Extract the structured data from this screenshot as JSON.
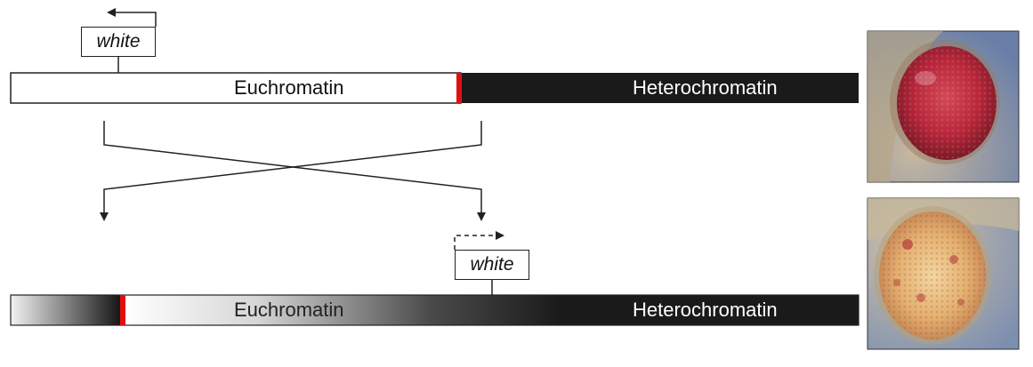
{
  "top_chromosome": {
    "gene": "white",
    "euchromatin_label": "Euchromatin",
    "heterochromatin_label": "Heterochromatin"
  },
  "bottom_chromosome": {
    "gene": "white",
    "euchromatin_label": "Euchromatin",
    "heterochromatin_label": "Heterochromatin"
  },
  "colors": {
    "heterochromatin": "#1a1a1a",
    "breakpoint": "#e01010",
    "eye_red": "#b8263a",
    "eye_variegated": "#e4b070"
  }
}
